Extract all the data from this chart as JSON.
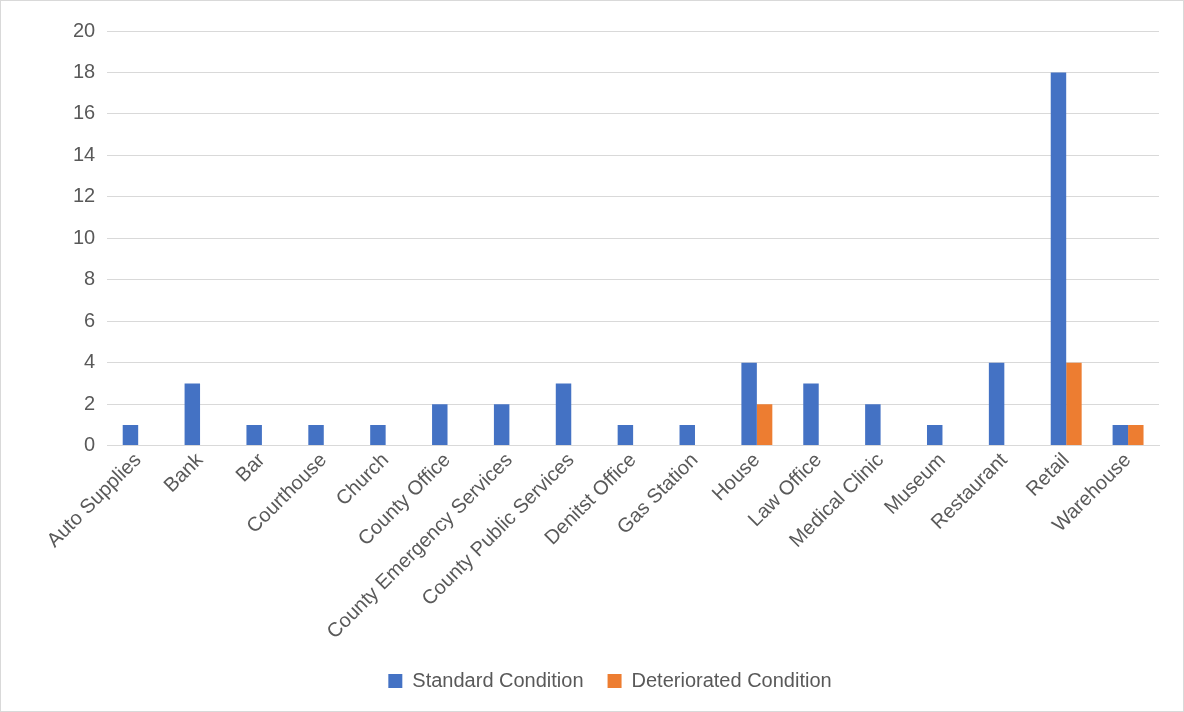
{
  "chart_data": {
    "type": "bar",
    "categories": [
      "Auto Supplies",
      "Bank",
      "Bar",
      "Courthouse",
      "Church",
      "County Office",
      "County Emergency Services",
      "County Public Services",
      "Denitst Office",
      "Gas Station",
      "House",
      "Law Office",
      "Medical Clinic",
      "Museum",
      "Restaurant",
      "Retail",
      "Warehouse"
    ],
    "series": [
      {
        "name": "Standard Condition",
        "color": "#4472c4",
        "values": [
          1,
          3,
          1,
          1,
          1,
          2,
          2,
          3,
          1,
          1,
          4,
          3,
          2,
          1,
          4,
          18,
          1
        ]
      },
      {
        "name": "Deteriorated Condition",
        "color": "#ed7d31",
        "values": [
          0,
          0,
          0,
          0,
          0,
          0,
          0,
          0,
          0,
          0,
          2,
          0,
          0,
          0,
          0,
          4,
          1
        ]
      }
    ],
    "ylim": [
      0,
      20
    ],
    "yticks": [
      0,
      2,
      4,
      6,
      8,
      10,
      12,
      14,
      16,
      18,
      20
    ],
    "grid": "y",
    "legend": "bottom"
  }
}
